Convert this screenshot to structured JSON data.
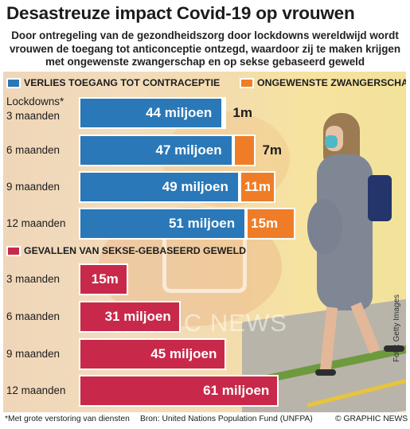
{
  "title": "Desastreuze impact Covid-19 op vrouwen",
  "subtitle": "Door ontregeling van de gezondheidszorg door lockdowns wereldwijd wordt vrouwen de toegang tot anticonceptie ontzegd, waardoor zij te maken krijgen met ongewenste zwangerschap en op sekse gebaseerd geweld",
  "photo_credit": "Foto: Getty Images",
  "watermark": "GRAPHIC NEWS",
  "colors": {
    "blue": "#2a78b7",
    "orange": "#ef7d27",
    "crimson": "#c8294a",
    "text": "#1c1c1c"
  },
  "chart_data": [
    {
      "type": "bar",
      "stacked": true,
      "orientation": "horizontal",
      "category_heading": "Lockdowns*",
      "categories": [
        "3 maanden",
        "6 maanden",
        "9 maanden",
        "12 maanden"
      ],
      "unit": "miljoen",
      "series": [
        {
          "name": "VERLIES TOEGANG TOT CONTRACEPTIE",
          "color": "#2a78b7",
          "values": [
            44,
            47,
            49,
            51
          ],
          "labels": [
            "44 miljoen",
            "47 miljoen",
            "49 miljoen",
            "51 miljoen"
          ]
        },
        {
          "name": "ONGEWENSTE ZWANGERSCHAP",
          "color": "#ef7d27",
          "values": [
            1,
            7,
            11,
            15
          ],
          "labels": [
            "1m",
            "7m",
            "11m",
            "15m"
          ]
        }
      ]
    },
    {
      "type": "bar",
      "orientation": "horizontal",
      "categories": [
        "3 maanden",
        "6 maanden",
        "9 maanden",
        "12 maanden"
      ],
      "unit": "miljoen",
      "series": [
        {
          "name": "GEVALLEN VAN SEKSE-GEBASEERD GEWELD",
          "color": "#c8294a",
          "values": [
            15,
            31,
            45,
            61
          ],
          "labels": [
            "15m",
            "31 miljoen",
            "45 miljoen",
            "61 miljoen"
          ]
        }
      ]
    }
  ],
  "footer": {
    "note": "*Met grote verstoring van diensten",
    "source": "Bron: United Nations Population Fund (UNFPA)",
    "copyright": "© GRAPHIC NEWS"
  }
}
